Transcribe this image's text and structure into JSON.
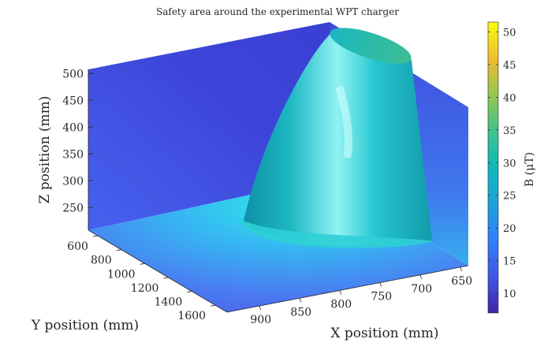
{
  "chart_data": {
    "type": "surface3d",
    "title": "Safety area around the experimental WPT charger",
    "xlabel": "X position (mm)",
    "ylabel": "Y position (mm)",
    "zlabel": "Z position (mm)",
    "colorbar_label": "B (μT)",
    "x_ticks": [
      650,
      700,
      750,
      800,
      850,
      900
    ],
    "y_ticks": [
      600,
      800,
      1000,
      1200,
      1400,
      1600
    ],
    "z_ticks": [
      250,
      300,
      350,
      400,
      450,
      500
    ],
    "colorbar_ticks": [
      10,
      15,
      20,
      25,
      30,
      35,
      40,
      45,
      50
    ],
    "colorbar_range": [
      7,
      51.5
    ],
    "colormap": "parula",
    "isosurface": {
      "shape": "cone",
      "apex_region": "lower, near X=700 Y=1000 Z=240",
      "opens_toward": "top / back (Y=600, Z=500)",
      "color": "#1fb8c2"
    },
    "slices": [
      {
        "plane": "back wall (Y≈600)",
        "color_range": [
          "#3a3fd6",
          "#4a6ef0"
        ]
      },
      {
        "plane": "floor (Z≈200)",
        "color_range": [
          "#4b6cf2",
          "#2de0e8"
        ]
      },
      {
        "plane": "right wall (X≈650)",
        "color_range": [
          "#4452e8",
          "#3fa7f0"
        ]
      }
    ]
  }
}
